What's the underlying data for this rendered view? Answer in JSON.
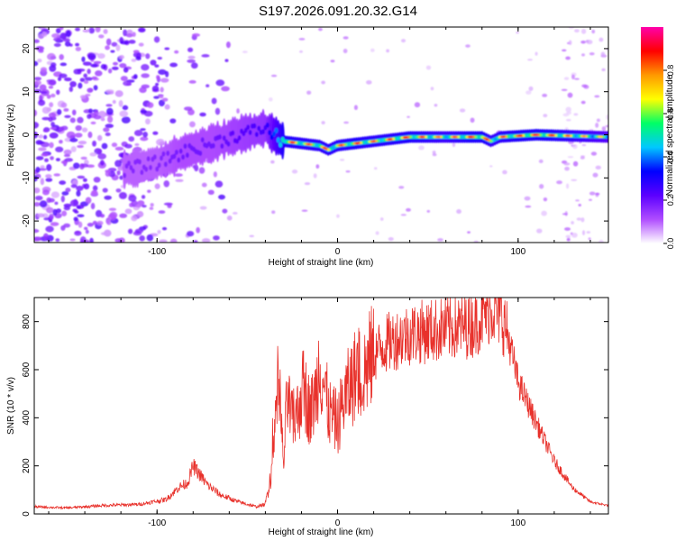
{
  "title": "S197.2026.091.20.32.G14",
  "chart_data": [
    {
      "type": "heatmap",
      "xlabel": "Height of straight line (km)",
      "ylabel": "Frequency (Hz)",
      "xlim": [
        -168,
        150
      ],
      "ylim": [
        -25,
        25
      ],
      "xticks": [
        -100,
        0,
        100
      ],
      "yticks": [
        -20,
        -10,
        0,
        10,
        20
      ],
      "colorbar": {
        "label": "Normalized spectral amplitude",
        "range": [
          0.0,
          1.0
        ],
        "ticks": [
          0.0,
          0.2,
          0.4,
          0.6,
          0.8
        ],
        "tick_labels": [
          "0.0",
          "0.2",
          "0.4",
          "0.6",
          "0.8"
        ],
        "colors": [
          "#ffffff",
          "#b04dff",
          "#5b00ff",
          "#0000ff",
          "#00c8ff",
          "#00ff66",
          "#ffff00",
          "#ff9900",
          "#ff0000",
          "#ff00aa"
        ]
      },
      "ridge": {
        "x": [
          -115,
          -100,
          -85,
          -70,
          -55,
          -40,
          -30,
          -20,
          -10,
          -5,
          0,
          10,
          20,
          40,
          60,
          80,
          85,
          90,
          110,
          150
        ],
        "y": [
          -8,
          -6.5,
          -4,
          -2,
          0,
          1.5,
          -1.5,
          -2,
          -2.5,
          -3.5,
          -2.5,
          -2,
          -1.5,
          -0.5,
          -0.5,
          -0.5,
          -1.5,
          -0.5,
          0,
          -0.5
        ],
        "amplitude": [
          0.3,
          0.3,
          0.35,
          0.35,
          0.4,
          0.45,
          0.9,
          0.85,
          0.85,
          0.85,
          0.85,
          0.9,
          0.85,
          0.9,
          0.8,
          0.95,
          0.8,
          0.85,
          0.95,
          0.7
        ]
      }
    },
    {
      "type": "line",
      "xlabel": "Height of straight line (km)",
      "ylabel": "SNR (10 * v/v)",
      "xlim": [
        -168,
        150
      ],
      "ylim": [
        0,
        900
      ],
      "xticks": [
        -100,
        0,
        100
      ],
      "yticks": [
        0,
        200,
        400,
        600,
        800
      ],
      "color": "#e8312b",
      "series": [
        {
          "name": "SNR",
          "x": [
            -168,
            -150,
            -130,
            -110,
            -95,
            -88,
            -83,
            -80,
            -77,
            -72,
            -65,
            -55,
            -45,
            -40,
            -37,
            -35,
            -34,
            -33,
            -31,
            -30,
            -28,
            -25,
            -22,
            -20,
            -18,
            -15,
            -12,
            -10,
            -8,
            -5,
            -3,
            -1,
            0,
            2,
            5,
            10,
            15,
            20,
            25,
            30,
            40,
            50,
            60,
            70,
            75,
            80,
            85,
            87,
            90,
            93,
            95,
            100,
            110,
            120,
            130,
            140,
            150
          ],
          "y": [
            30,
            25,
            35,
            40,
            60,
            110,
            130,
            200,
            170,
            120,
            80,
            50,
            30,
            40,
            160,
            280,
            420,
            520,
            350,
            200,
            480,
            380,
            420,
            520,
            500,
            420,
            500,
            640,
            560,
            430,
            400,
            390,
            360,
            440,
            500,
            580,
            600,
            660,
            700,
            720,
            750,
            760,
            770,
            780,
            790,
            820,
            860,
            850,
            830,
            780,
            720,
            550,
            380,
            220,
            110,
            50,
            35
          ]
        }
      ]
    }
  ]
}
